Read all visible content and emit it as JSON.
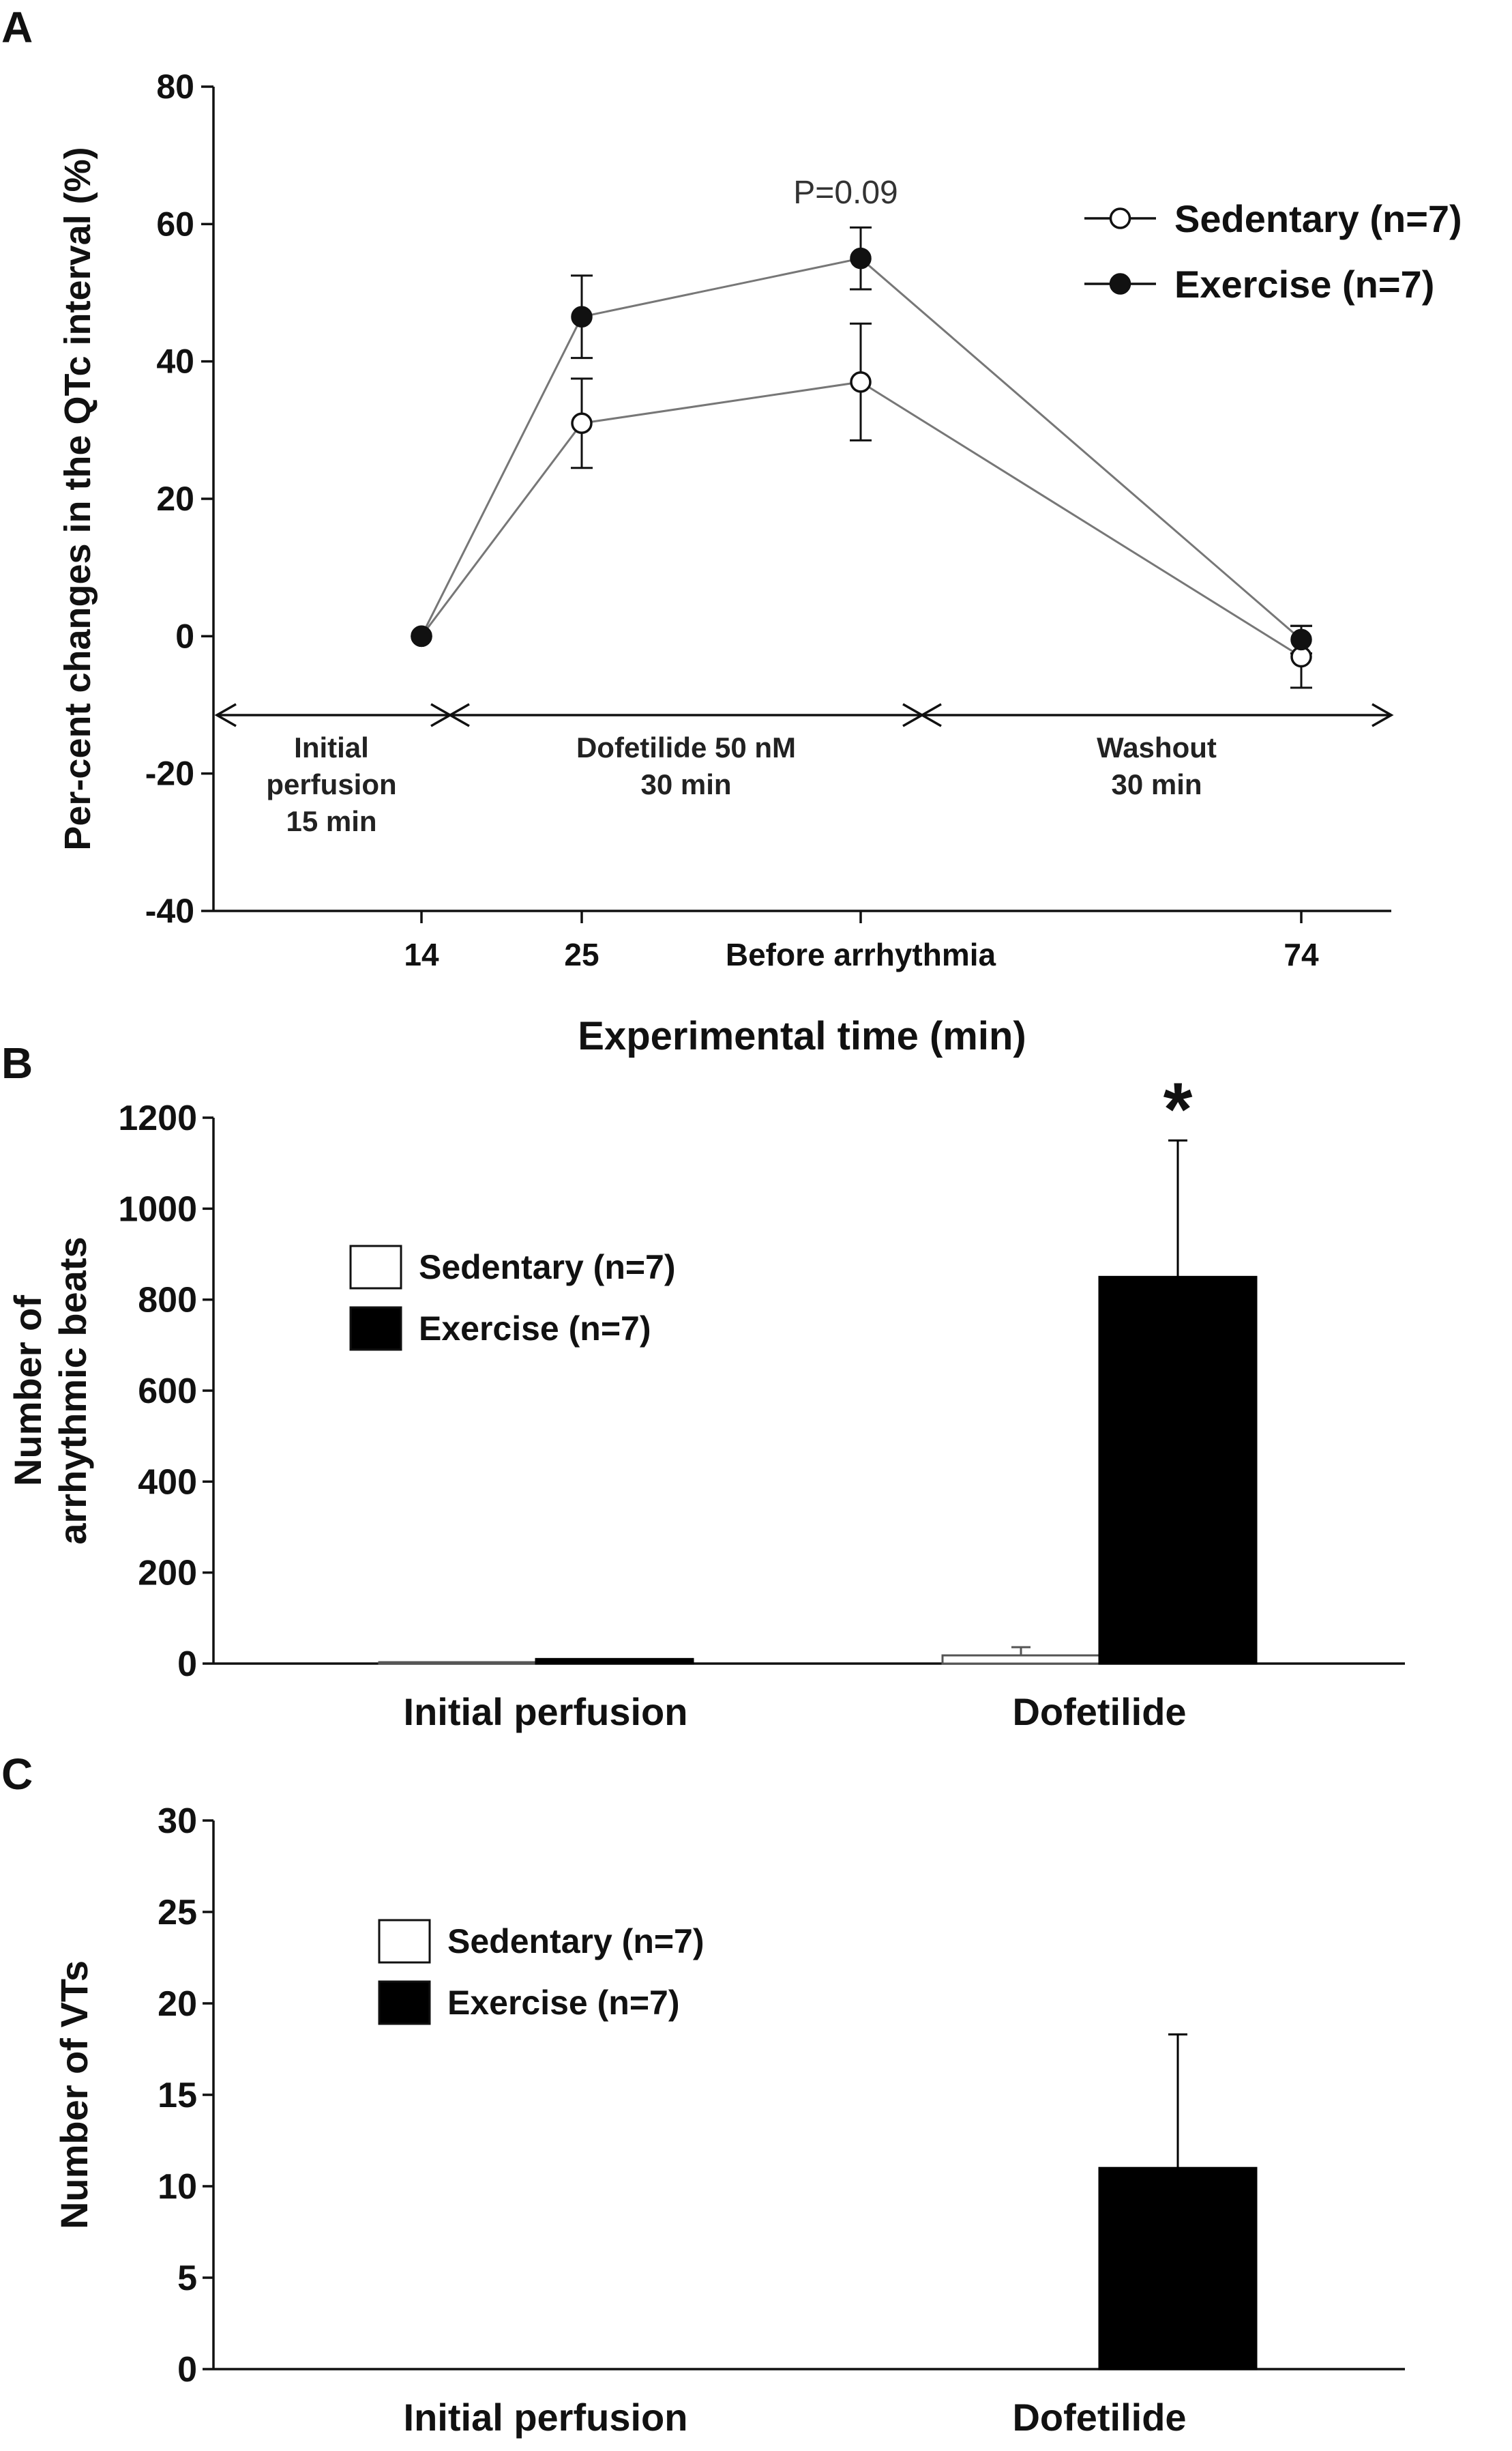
{
  "chart_data": [
    {
      "panel": "A",
      "type": "line",
      "ylabel": "Per-cent changes in the QTc interval (%)",
      "xlabel": "Experimental time (min)",
      "ylim": [
        -40,
        80
      ],
      "yticks": [
        80,
        60,
        40,
        20,
        0,
        -20,
        -40
      ],
      "categories": [
        "14",
        "25",
        "Before arrhythmia",
        "74"
      ],
      "series": [
        {
          "name": "Sedentary (n=7)",
          "marker": "open-circle",
          "values": [
            0,
            31,
            37,
            -3
          ],
          "errors": [
            0,
            6.5,
            8.5,
            4.5
          ]
        },
        {
          "name": "Exercise (n=7)",
          "marker": "filled-circle",
          "values": [
            0,
            46.5,
            55,
            -0.5
          ],
          "errors": [
            0,
            6,
            4.5,
            2
          ]
        }
      ],
      "annotations": [
        {
          "text": "P=0.09"
        }
      ],
      "phases": [
        {
          "line1": "Initial",
          "line2": "perfusion",
          "line3": "15 min"
        },
        {
          "line1": "Dofetilide 50  nM",
          "line2": "30 min",
          "line3": ""
        },
        {
          "line1": "Washout",
          "line2": "30 min",
          "line3": ""
        }
      ],
      "legend_position": "top-right"
    },
    {
      "panel": "B",
      "type": "bar",
      "ylabel_line1": "Number of",
      "ylabel_line2": "arrhythmic beats",
      "ylim": [
        0,
        1200
      ],
      "yticks": [
        1200,
        1000,
        800,
        600,
        400,
        200,
        0
      ],
      "categories": [
        "Initial perfusion",
        "Dofetilide"
      ],
      "series": [
        {
          "name": "Sedentary (n=7)",
          "color": "#ffffff",
          "values": [
            3,
            18
          ],
          "errors": [
            0,
            18
          ]
        },
        {
          "name": "Exercise (n=7)",
          "color": "#000000",
          "values": [
            10,
            850
          ],
          "errors": [
            0,
            300
          ]
        }
      ],
      "significance": "*",
      "legend_position": "upper-left"
    },
    {
      "panel": "C",
      "type": "bar",
      "ylabel": "Number of VTs",
      "ylim": [
        0,
        30
      ],
      "yticks": [
        30,
        25,
        20,
        15,
        10,
        5,
        0
      ],
      "categories": [
        "Initial perfusion",
        "Dofetilide"
      ],
      "series": [
        {
          "name": "Sedentary (n=7)",
          "color": "#ffffff",
          "values": [
            0,
            0
          ],
          "errors": [
            0,
            0
          ]
        },
        {
          "name": "Exercise (n=7)",
          "color": "#000000",
          "values": [
            0,
            11
          ],
          "errors": [
            0,
            7.3
          ]
        }
      ],
      "legend_position": "upper-left"
    }
  ]
}
